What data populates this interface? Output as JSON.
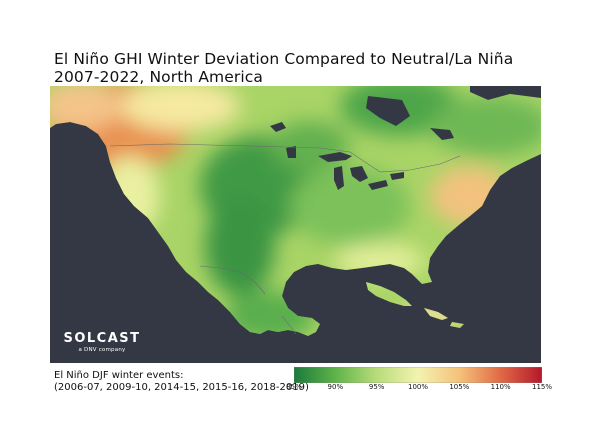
{
  "title": {
    "line1": "El Niño GHI Winter Deviation Compared to Neutral/La Niña",
    "line2": "2007-2022, North America"
  },
  "logo": {
    "name": "SOLCAST",
    "tagline": "a DNV company"
  },
  "events_note": {
    "line1": "El Niño DJF winter events:",
    "line2": "(2006-07, 2009-10, 2014-15, 2015-16, 2018-2019)"
  },
  "colorbar": {
    "min": 85,
    "max": 115,
    "ticks": [
      {
        "value": 85,
        "label": "85%"
      },
      {
        "value": 90,
        "label": "90%"
      },
      {
        "value": 95,
        "label": "95%"
      },
      {
        "value": 100,
        "label": "100%"
      },
      {
        "value": 105,
        "label": "105%"
      },
      {
        "value": 110,
        "label": "110%"
      },
      {
        "value": 115,
        "label": "115%"
      }
    ],
    "colors": [
      "#1a7a3a",
      "#5fb34a",
      "#b8dc7a",
      "#f3f3b0",
      "#f5c27a",
      "#e06a45",
      "#b5182c"
    ]
  },
  "map_colors": {
    "ocean": "#333844",
    "borders": "#6b6b6b"
  }
}
